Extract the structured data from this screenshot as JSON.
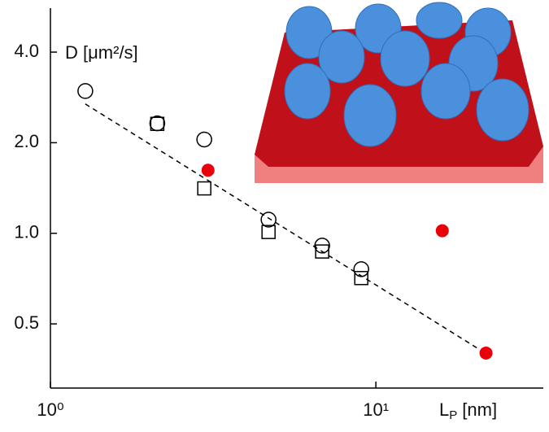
{
  "chart_data": {
    "type": "scatter",
    "xlog": true,
    "ylog": true,
    "xlim": [
      1,
      32.7
    ],
    "ylim": [
      0.306,
      5.6
    ],
    "xticks": [
      {
        "value": 1,
        "label": "10⁰"
      },
      {
        "value": 10,
        "label": "10¹"
      }
    ],
    "yticks": [
      {
        "value": 0.5,
        "label": "0.5"
      },
      {
        "value": 1,
        "label": "1.0"
      },
      {
        "value": 2,
        "label": "2.0"
      },
      {
        "value": 4,
        "label": "4.0"
      }
    ],
    "ylabel": "D [μm²/s]",
    "xlabel": {
      "symbol": "L",
      "subscript": "P",
      "unit": "[nm]"
    },
    "series": [
      {
        "marker": "circle",
        "filled": false,
        "color": "#000000",
        "x": [
          1.28,
          2.13,
          2.97,
          4.68,
          6.84,
          9.02
        ],
        "values": [
          2.97,
          2.32,
          2.05,
          1.11,
          0.91,
          0.76
        ]
      },
      {
        "marker": "square",
        "filled": false,
        "color": "#000000",
        "x": [
          2.13,
          2.97,
          4.68,
          6.84,
          9.02
        ],
        "values": [
          2.31,
          1.41,
          1.01,
          0.87,
          0.71
        ]
      },
      {
        "marker": "circle",
        "filled": true,
        "color": "#e8000b",
        "x": [
          3.05,
          16.0,
          21.8
        ],
        "values": [
          1.62,
          1.02,
          0.4
        ]
      },
      {
        "marker": "line",
        "dashed": true,
        "color": "#000000",
        "x": [
          1.28,
          20.9
        ],
        "values": [
          2.69,
          0.41
        ]
      }
    ]
  }
}
